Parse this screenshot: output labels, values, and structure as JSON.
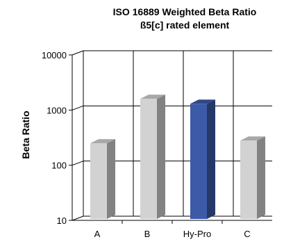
{
  "chart_data": {
    "type": "bar",
    "title": [
      "ISO 16889 Weighted Beta Ratio",
      "ß5[c] rated element"
    ],
    "xlabel": "",
    "ylabel": "Beta Ratio",
    "categories": [
      "A",
      "B",
      "Hy-Pro",
      "C"
    ],
    "values": [
      250,
      1600,
      1300,
      280
    ],
    "yscale": "log",
    "ylim": [
      10,
      10000
    ],
    "yticks": [
      10,
      100,
      1000,
      10000
    ],
    "yticklabels": [
      "10",
      "100",
      "1000",
      "10000"
    ],
    "grid": true,
    "style": "3d",
    "bar_colors": [
      "#d2d2d2",
      "#d2d2d2",
      "#3d5aa8",
      "#d2d2d2"
    ]
  }
}
